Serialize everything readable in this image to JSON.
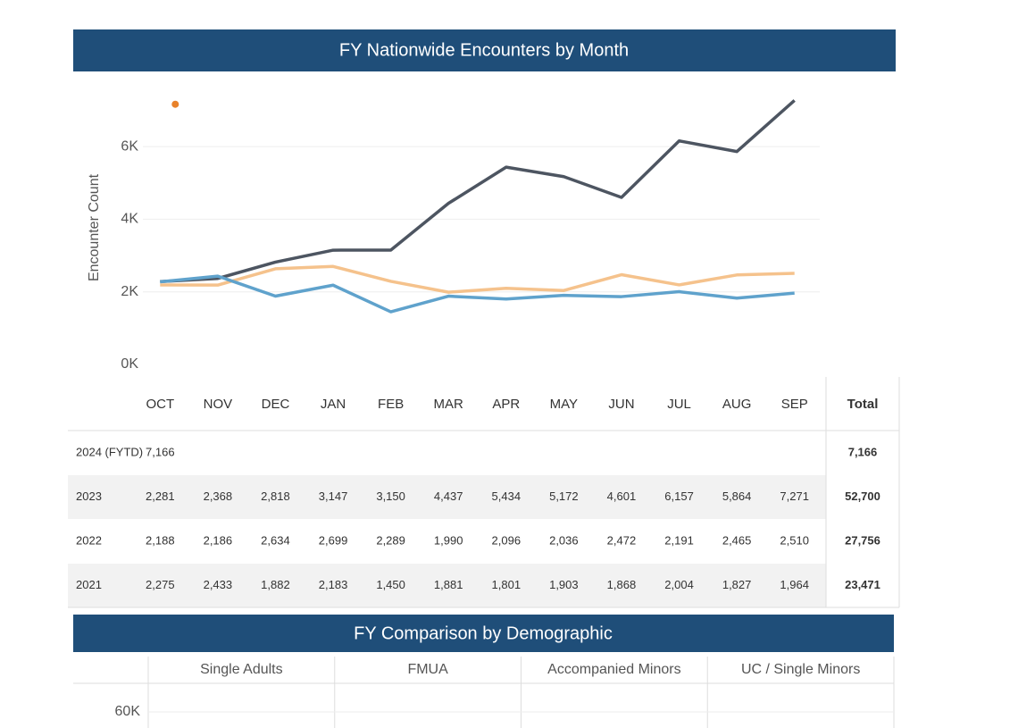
{
  "chart_data": [
    {
      "type": "line",
      "title": "FY Nationwide Encounters by Month",
      "y_label": "Encounter Count",
      "categories": [
        "OCT",
        "NOV",
        "DEC",
        "JAN",
        "FEB",
        "MAR",
        "APR",
        "MAY",
        "JUN",
        "JUL",
        "AUG",
        "SEP"
      ],
      "total_header": "Total",
      "ylim": [
        0,
        7700
      ],
      "yticks": [
        {
          "value": 0,
          "label": "0K"
        },
        {
          "value": 2000,
          "label": "2K"
        },
        {
          "value": 4000,
          "label": "4K"
        },
        {
          "value": 6000,
          "label": "6K"
        }
      ],
      "grid": true,
      "series": [
        {
          "name": "2024 (FYTD)",
          "color": "#e8822a",
          "values": [
            7166,
            null,
            null,
            null,
            null,
            null,
            null,
            null,
            null,
            null,
            null,
            null
          ],
          "value_labels": [
            "7,166",
            null,
            null,
            null,
            null,
            null,
            null,
            null,
            null,
            null,
            null,
            null
          ],
          "total_label": "7,166"
        },
        {
          "name": "2023",
          "color": "#4d5561",
          "values": [
            2281,
            2368,
            2818,
            3147,
            3150,
            4437,
            5434,
            5172,
            4601,
            6157,
            5864,
            7271
          ],
          "value_labels": [
            "2,281",
            "2,368",
            "2,818",
            "3,147",
            "3,150",
            "4,437",
            "5,434",
            "5,172",
            "4,601",
            "6,157",
            "5,864",
            "7,271"
          ],
          "total_label": "52,700"
        },
        {
          "name": "2022",
          "color": "#f5c28c",
          "values": [
            2188,
            2186,
            2634,
            2699,
            2289,
            1990,
            2096,
            2036,
            2472,
            2191,
            2465,
            2510
          ],
          "value_labels": [
            "2,188",
            "2,186",
            "2,634",
            "2,699",
            "2,289",
            "1,990",
            "2,096",
            "2,036",
            "2,472",
            "2,191",
            "2,465",
            "2,510"
          ],
          "total_label": "27,756"
        },
        {
          "name": "2021",
          "color": "#5fa2cc",
          "values": [
            2275,
            2433,
            1882,
            2183,
            1450,
            1881,
            1801,
            1903,
            1868,
            2004,
            1827,
            1964
          ],
          "value_labels": [
            "2,275",
            "2,433",
            "1,882",
            "2,183",
            "1,450",
            "1,881",
            "1,801",
            "1,903",
            "1,868",
            "2,004",
            "1,827",
            "1,964"
          ],
          "total_label": "23,471"
        }
      ]
    },
    {
      "type": "bar",
      "title": "FY Comparison by Demographic",
      "categories": [
        "Single Adults",
        "FMUA",
        "Accompanied Minors",
        "UC / Single Minors"
      ],
      "ylim": [
        0,
        70000
      ],
      "yticks": [
        {
          "value": 60000,
          "label": "60K"
        }
      ]
    }
  ]
}
